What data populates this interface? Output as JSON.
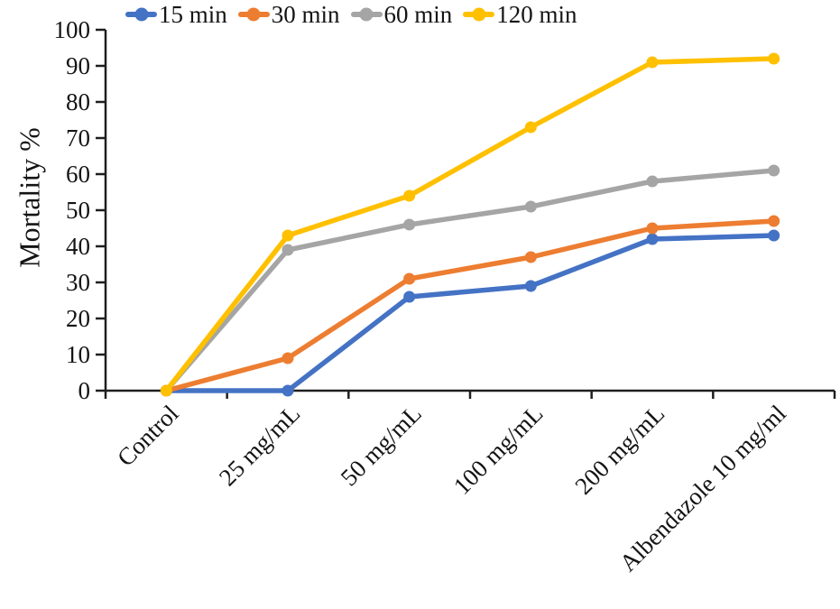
{
  "chart_data": {
    "type": "line",
    "title": "",
    "xlabel": "",
    "ylabel": "Mortality %",
    "ylim": [
      0,
      100
    ],
    "yticks": [
      0,
      10,
      20,
      30,
      40,
      50,
      60,
      70,
      80,
      90,
      100
    ],
    "grid": false,
    "legend_position": "top",
    "categories": [
      "Control",
      "25 mg/mL",
      "50 mg/mL",
      "100 mg/mL",
      "200 mg/mL",
      "Albendazole 10 mg/ml"
    ],
    "series": [
      {
        "name": "15 min",
        "color": "#4472C4",
        "values": [
          0,
          0,
          26,
          29,
          42,
          43
        ]
      },
      {
        "name": "30 min",
        "color": "#ED7D31",
        "values": [
          0,
          9,
          31,
          37,
          45,
          47
        ]
      },
      {
        "name": "60 min",
        "color": "#A5A5A5",
        "values": [
          0,
          39,
          46,
          51,
          58,
          61
        ]
      },
      {
        "name": "120 min",
        "color": "#FFC000",
        "values": [
          0,
          43,
          54,
          73,
          91,
          92
        ]
      }
    ],
    "axis_color": "#1f1f1f"
  }
}
